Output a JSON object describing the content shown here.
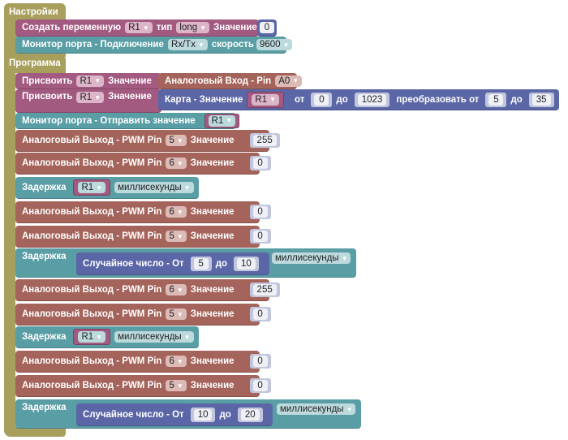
{
  "setup": {
    "title": "Настройки",
    "create_var": {
      "label": "Создать переменную",
      "var": "R1",
      "type_label": "тип",
      "type": "long",
      "value_label": "Значение",
      "value": "0"
    },
    "serial": {
      "label": "Монитор порта - Подключение",
      "port": "Rx/Tx",
      "speed_label": "скорость",
      "speed": "9600"
    }
  },
  "program": {
    "title": "Программа",
    "assign1": {
      "label": "Присвоить",
      "var": "R1",
      "value_label": "Значение",
      "input_label": "Аналоговый Вход - Pin",
      "pin": "A0"
    },
    "assign2": {
      "label": "Присвоить",
      "var": "R1",
      "value_label": "Значение",
      "map_label": "Карта - Значение",
      "map_var": "R1",
      "from": "от",
      "from_val": "0",
      "to": "до",
      "to_val": "1023",
      "conv": "преобразовать от",
      "conv_from": "5",
      "conv_to_label": "до",
      "conv_to": "35"
    },
    "send": {
      "label": "Монитор порта - Отправить значение",
      "var": "R1"
    },
    "pwm_label": "Аналоговый Выход - PWM Pin",
    "value_label": "Значение",
    "delay_label": "Задержка",
    "unit": "миллисекунды",
    "random_label": "Случайное число - От",
    "to_label": "до",
    "blocks": [
      {
        "type": "pwm",
        "pin": "5",
        "value": "255"
      },
      {
        "type": "pwm",
        "pin": "6",
        "value": "0"
      },
      {
        "type": "delay_var",
        "var": "R1"
      },
      {
        "type": "pwm",
        "pin": "6",
        "value": "0"
      },
      {
        "type": "pwm",
        "pin": "5",
        "value": "0"
      },
      {
        "type": "delay_random",
        "from": "5",
        "to": "10"
      },
      {
        "type": "pwm",
        "pin": "6",
        "value": "255"
      },
      {
        "type": "pwm",
        "pin": "5",
        "value": "0"
      },
      {
        "type": "delay_var",
        "var": "R1"
      },
      {
        "type": "pwm",
        "pin": "6",
        "value": "0"
      },
      {
        "type": "pwm",
        "pin": "5",
        "value": "0"
      },
      {
        "type": "delay_random",
        "from": "10",
        "to": "20"
      }
    ]
  },
  "colors": {
    "event": "#a89f5c",
    "variable": "#a35a80",
    "serial": "#5a9ea5",
    "io": "#a5645b",
    "math": "#5b66a6"
  }
}
